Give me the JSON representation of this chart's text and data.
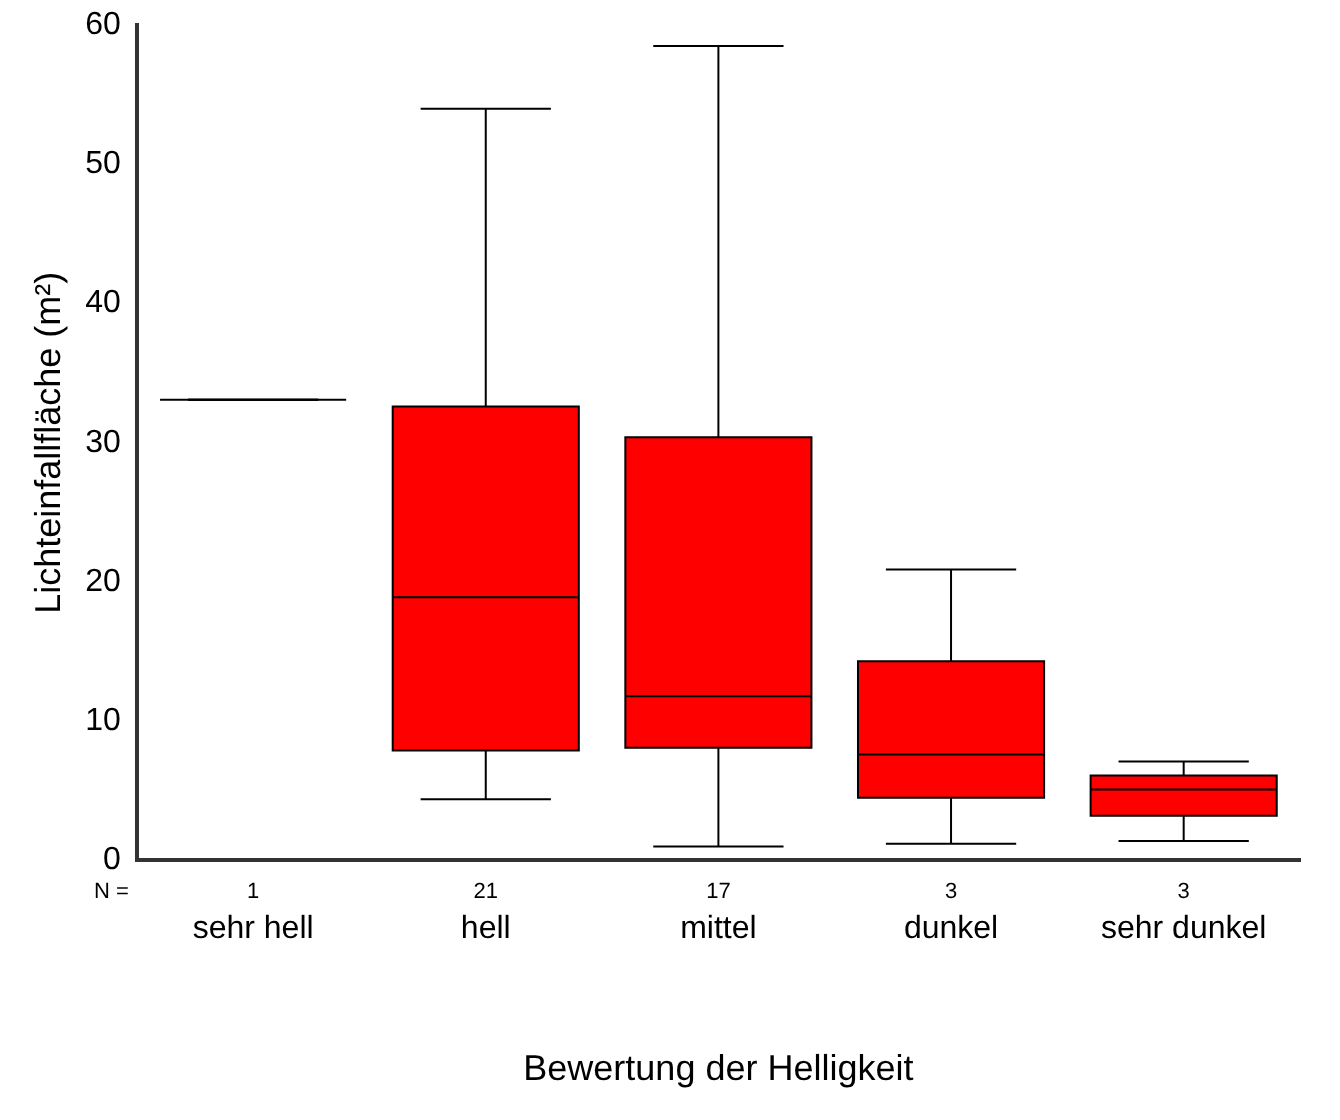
{
  "chart_data": {
    "type": "box",
    "xlabel": "Bewertung der Helligkeit",
    "ylabel": "Lichteinfallfläche (m²)",
    "categories": [
      "sehr hell",
      "hell",
      "mittel",
      "dunkel",
      "sehr dunkel"
    ],
    "colors": [
      "#000000",
      "#ff0000",
      "#ff0000",
      "#ff0000",
      "#ff0000"
    ],
    "boxes": [
      {
        "low": 33.1,
        "q1": 33.1,
        "median": 33.1,
        "q3": 33.1,
        "high": 33.1
      },
      {
        "low": 4.4,
        "q1": 7.9,
        "median": 18.9,
        "q3": 32.6,
        "high": 54.0
      },
      {
        "low": 1.0,
        "q1": 8.1,
        "median": 11.8,
        "q3": 30.4,
        "high": 58.5
      },
      {
        "low": 1.2,
        "q1": 4.5,
        "median": 7.6,
        "q3": 14.3,
        "high": 20.9
      },
      {
        "low": 1.4,
        "q1": 3.2,
        "median": 5.1,
        "q3": 6.1,
        "high": 7.1
      }
    ],
    "ylim": [
      0,
      60
    ],
    "yticks": [
      0,
      10,
      20,
      30,
      40,
      50,
      60
    ],
    "grid": false,
    "legend": false,
    "annotations": [
      "N =",
      "1",
      "21",
      "17",
      "3",
      "3"
    ]
  }
}
